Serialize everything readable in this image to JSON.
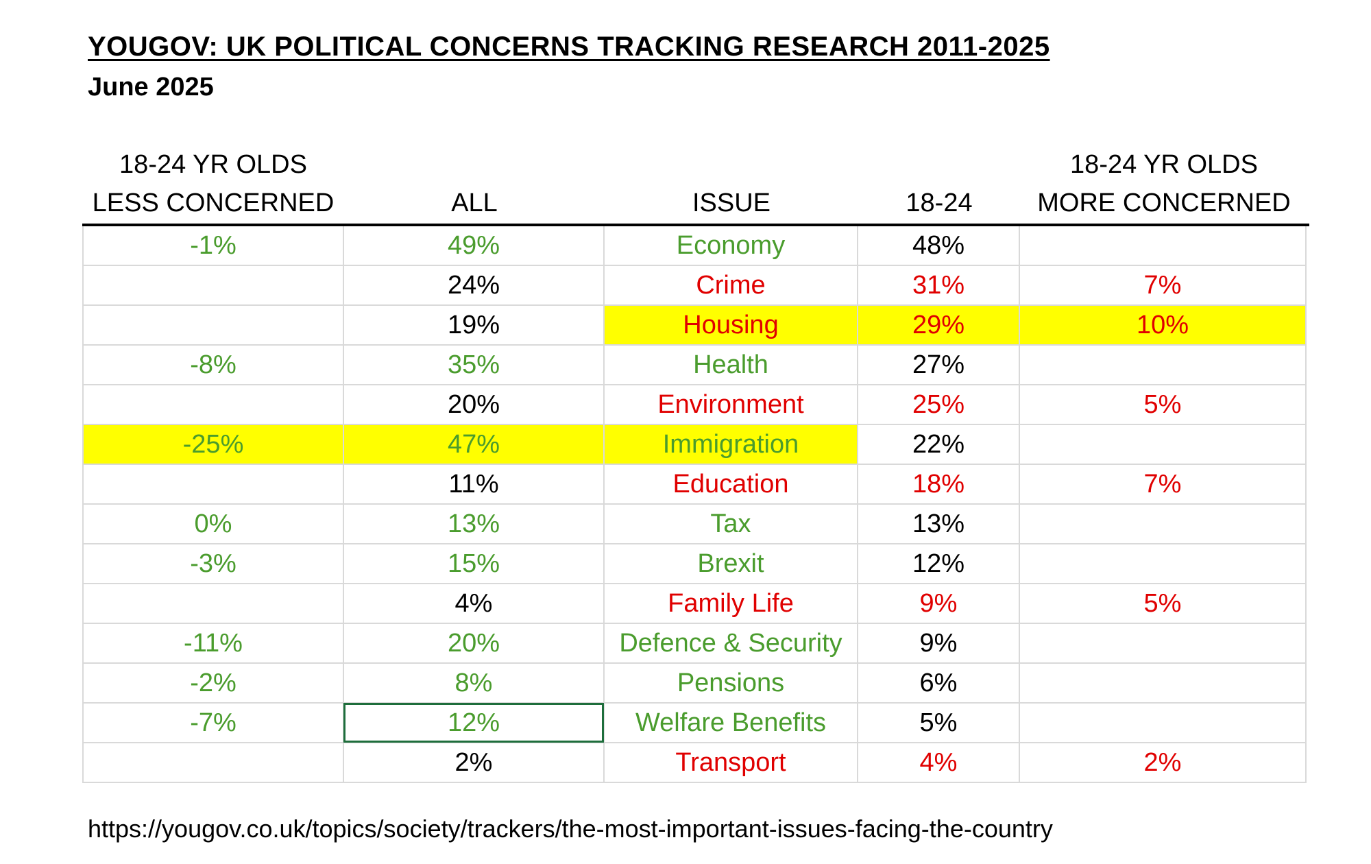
{
  "title": "YOUGOV: UK POLITICAL CONCERNS TRACKING RESEARCH 2011-2025",
  "subtitle": "June 2025",
  "headers": {
    "less_line1": "18-24 YR OLDS",
    "less_line2": "LESS CONCERNED",
    "all": "ALL",
    "issue": "ISSUE",
    "age": "18-24",
    "more_line1": "18-24 YR OLDS",
    "more_line2": "MORE CONCERNED"
  },
  "colors": {
    "green": "#4a9c2d",
    "red": "#e00000",
    "highlight": "#ffff00"
  },
  "rows": [
    {
      "less": "-1%",
      "all": "49%",
      "issue": "Economy",
      "age": "48%",
      "more": "",
      "tone": "green"
    },
    {
      "less": "",
      "all": "24%",
      "issue": "Crime",
      "age": "31%",
      "more": "7%",
      "tone": "red"
    },
    {
      "less": "",
      "all": "19%",
      "issue": "Housing",
      "age": "29%",
      "more": "10%",
      "tone": "red"
    },
    {
      "less": "-8%",
      "all": "35%",
      "issue": "Health",
      "age": "27%",
      "more": "",
      "tone": "green"
    },
    {
      "less": "",
      "all": "20%",
      "issue": "Environment",
      "age": "25%",
      "more": "5%",
      "tone": "red"
    },
    {
      "less": "-25%",
      "all": "47%",
      "issue": "Immigration",
      "age": "22%",
      "more": "",
      "tone": "green"
    },
    {
      "less": "",
      "all": "11%",
      "issue": "Education",
      "age": "18%",
      "more": "7%",
      "tone": "red"
    },
    {
      "less": "0%",
      "all": "13%",
      "issue": "Tax",
      "age": "13%",
      "more": "",
      "tone": "green"
    },
    {
      "less": "-3%",
      "all": "15%",
      "issue": "Brexit",
      "age": "12%",
      "more": "",
      "tone": "green"
    },
    {
      "less": "",
      "all": "4%",
      "issue": "Family Life",
      "age": "9%",
      "more": "5%",
      "tone": "red"
    },
    {
      "less": "-11%",
      "all": "20%",
      "issue": "Defence & Security",
      "age": "9%",
      "more": "",
      "tone": "green"
    },
    {
      "less": "-2%",
      "all": "8%",
      "issue": "Pensions",
      "age": "6%",
      "more": "",
      "tone": "green"
    },
    {
      "less": "-7%",
      "all": "12%",
      "issue": "Welfare Benefits",
      "age": "5%",
      "more": "",
      "tone": "green"
    },
    {
      "less": "",
      "all": "2%",
      "issue": "Transport",
      "age": "4%",
      "more": "2%",
      "tone": "red"
    }
  ],
  "highlighted_rows": {
    "Housing": "right",
    "Immigration": "left"
  },
  "selected_cell": {
    "issue": "Welfare Benefits",
    "column": "all"
  },
  "source_url": "https://yougov.co.uk/topics/society/trackers/the-most-important-issues-facing-the-country"
}
